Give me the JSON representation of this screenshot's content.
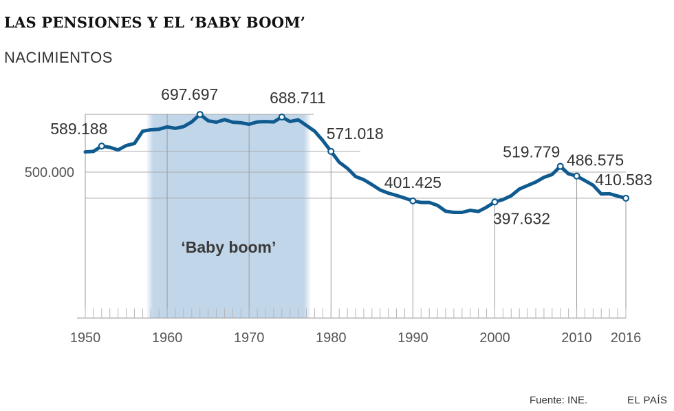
{
  "header": {
    "title": "LAS PENSIONES Y EL ‘BABY BOOM’",
    "subtitle": "NACIMIENTOS"
  },
  "footer": {
    "source": "Fuente: INE.",
    "brand": "EL PAÍS"
  },
  "colors": {
    "line": "#0f5a8e",
    "band": "#c2d6ea",
    "grid": "#aaaaaa",
    "text": "#333333"
  },
  "chart_data": {
    "type": "line",
    "title": "LAS PENSIONES Y EL ‘BABY BOOM’",
    "ylabel": "NACIMIENTOS",
    "xlim": [
      1950,
      2016
    ],
    "ylim": [
      0,
      720000
    ],
    "x_ticks": [
      {
        "value": 1950,
        "label": "1950"
      },
      {
        "value": 1960,
        "label": "1960"
      },
      {
        "value": 1970,
        "label": "1970"
      },
      {
        "value": 1980,
        "label": "1980"
      },
      {
        "value": 1990,
        "label": "1990"
      },
      {
        "value": 2000,
        "label": "2000"
      },
      {
        "value": 2010,
        "label": "2010"
      },
      {
        "value": 2016,
        "label": "2016"
      }
    ],
    "y_ticks": [
      {
        "value": 500000,
        "label": "500.000"
      }
    ],
    "shaded_band": {
      "from": 1957.5,
      "to": 1977.5,
      "label": "‘Baby boom’"
    },
    "x": [
      1950,
      1951,
      1952,
      1953,
      1954,
      1955,
      1956,
      1957,
      1958,
      1959,
      1960,
      1961,
      1962,
      1963,
      1964,
      1965,
      1966,
      1967,
      1968,
      1969,
      1970,
      1971,
      1972,
      1973,
      1974,
      1975,
      1976,
      1977,
      1978,
      1979,
      1980,
      1981,
      1982,
      1983,
      1984,
      1985,
      1986,
      1987,
      1988,
      1989,
      1990,
      1991,
      1992,
      1993,
      1994,
      1995,
      1996,
      1997,
      1998,
      1999,
      2000,
      2001,
      2002,
      2003,
      2004,
      2005,
      2006,
      2007,
      2008,
      2009,
      2010,
      2011,
      2012,
      2013,
      2014,
      2015,
      2016
    ],
    "values": [
      569000,
      571000,
      589188,
      585000,
      576000,
      591000,
      598000,
      640000,
      645000,
      647000,
      655000,
      650000,
      656000,
      672000,
      697697,
      676000,
      671000,
      680000,
      671000,
      669000,
      664000,
      672000,
      673000,
      672000,
      688711,
      673000,
      679000,
      660000,
      640000,
      608000,
      571018,
      534000,
      513000,
      485000,
      474000,
      457000,
      439000,
      428000,
      420000,
      411000,
      401425,
      396000,
      396000,
      386000,
      366000,
      362000,
      362000,
      369000,
      365000,
      380000,
      397632,
      406000,
      419000,
      442000,
      454000,
      466000,
      482000,
      492000,
      519779,
      494000,
      486575,
      471000,
      455000,
      425000,
      426000,
      418000,
      410583
    ],
    "annotations": [
      {
        "x": 1952,
        "y": 589188,
        "label": "589.188"
      },
      {
        "x": 1964,
        "y": 697697,
        "label": "697.697"
      },
      {
        "x": 1974,
        "y": 688711,
        "label": "688.711"
      },
      {
        "x": 1980,
        "y": 571018,
        "label": "571.018"
      },
      {
        "x": 1990,
        "y": 401425,
        "label": "401.425"
      },
      {
        "x": 2000,
        "y": 397632,
        "label": "397.632"
      },
      {
        "x": 2008,
        "y": 519779,
        "label": "519.779"
      },
      {
        "x": 2010,
        "y": 486575,
        "label": "486.575"
      },
      {
        "x": 2016,
        "y": 410583,
        "label": "410.583"
      }
    ],
    "grid": false,
    "legend": "none"
  }
}
